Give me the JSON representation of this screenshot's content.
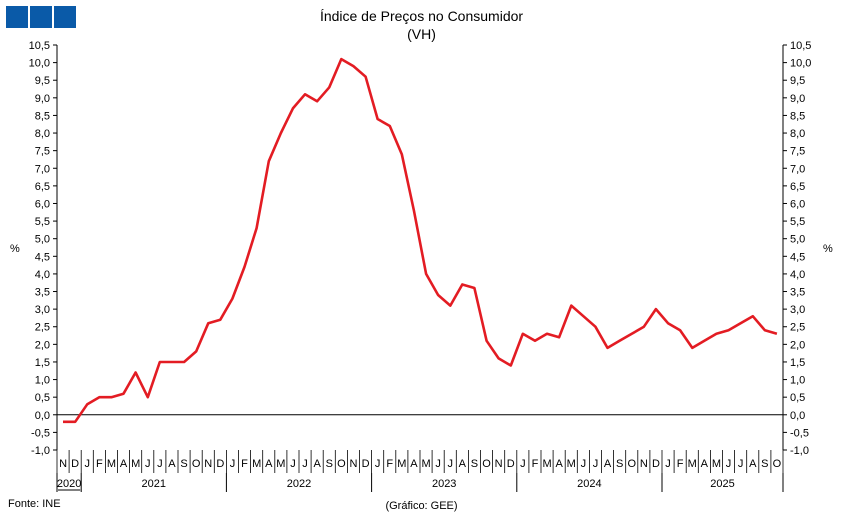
{
  "header": {
    "logo": "ine-logo-icon"
  },
  "chart_data": {
    "type": "line",
    "title": "Índice de Preços no Consumidor",
    "subtitle": "(VH)",
    "ylabel_left": "%",
    "ylabel_right": "%",
    "ylim": [
      -1.0,
      10.5
    ],
    "yticks": [
      "-1,0",
      "-0,5",
      "0,0",
      "0,5",
      "1,0",
      "1,5",
      "2,0",
      "2,5",
      "3,0",
      "3,5",
      "4,0",
      "4,5",
      "5,0",
      "5,5",
      "6,0",
      "6,5",
      "7,0",
      "7,5",
      "8,0",
      "8,5",
      "9,0",
      "9,5",
      "10,0",
      "10,5"
    ],
    "grid": false,
    "months": [
      "N",
      "D",
      "J",
      "F",
      "M",
      "A",
      "M",
      "J",
      "J",
      "A",
      "S",
      "O",
      "N",
      "D",
      "J",
      "F",
      "M",
      "A",
      "M",
      "J",
      "J",
      "A",
      "S",
      "O",
      "N",
      "D",
      "J",
      "F",
      "M",
      "A",
      "M",
      "J",
      "J",
      "A",
      "S",
      "O",
      "N",
      "D",
      "J",
      "F",
      "M",
      "A",
      "M",
      "J",
      "J",
      "A",
      "S",
      "O",
      "N",
      "D",
      "J",
      "F",
      "M",
      "A",
      "M",
      "J",
      "J",
      "A",
      "S",
      "O"
    ],
    "years": [
      {
        "label": "2020",
        "start": 0,
        "count": 2
      },
      {
        "label": "2021",
        "start": 2,
        "count": 12
      },
      {
        "label": "2022",
        "start": 14,
        "count": 12
      },
      {
        "label": "2023",
        "start": 26,
        "count": 12
      },
      {
        "label": "2024",
        "start": 38,
        "count": 12
      },
      {
        "label": "2025",
        "start": 50,
        "count": 10
      }
    ],
    "series": [
      {
        "values": [
          -0.2,
          -0.2,
          0.3,
          0.5,
          0.5,
          0.6,
          1.2,
          0.5,
          1.5,
          1.5,
          1.5,
          1.8,
          2.6,
          2.7,
          3.3,
          4.2,
          5.3,
          7.2,
          8.0,
          8.7,
          9.1,
          8.9,
          9.3,
          10.1,
          9.9,
          9.6,
          8.4,
          8.2,
          7.4,
          5.8,
          4.0,
          3.4,
          3.1,
          3.7,
          3.6,
          2.1,
          1.6,
          1.4,
          2.3,
          2.1,
          2.3,
          2.2,
          3.1,
          2.8,
          2.5,
          1.9,
          2.1,
          2.3,
          2.5,
          3.0,
          2.6,
          2.4,
          1.9,
          2.1,
          2.3,
          2.4,
          2.6,
          2.8,
          2.4,
          2.3
        ],
        "color": "#e31c23"
      }
    ],
    "source": "Fonte: INE",
    "credit": "(Gráfico: GEE)"
  }
}
